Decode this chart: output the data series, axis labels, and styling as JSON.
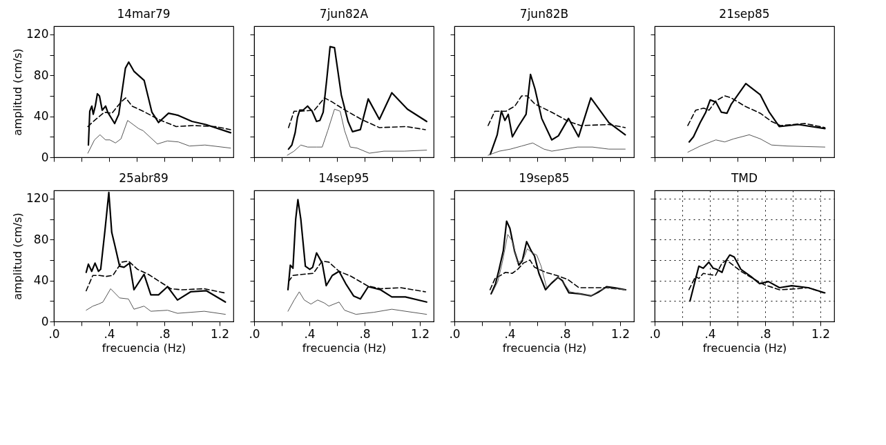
{
  "chart_data": [
    {
      "type": "line",
      "title": "14mar79",
      "ylabel": "amplitud (cm/s)",
      "xlim": [
        0,
        1.3
      ],
      "ylim": [
        0,
        128
      ],
      "xticks": [
        {
          "value": 0,
          "label": null
        },
        {
          "value": 0.2,
          "label": null
        },
        {
          "value": 0.4,
          "label": null
        },
        {
          "value": 0.6,
          "label": null
        },
        {
          "value": 0.8,
          "label": null
        },
        {
          "value": 1.0,
          "label": null
        },
        {
          "value": 1.2,
          "label": null
        }
      ],
      "yticks": [
        0,
        {
          "value": 20,
          "label": null
        },
        40,
        {
          "value": 60,
          "label": null
        },
        80,
        {
          "value": 100,
          "label": null
        },
        120
      ],
      "tick_labels": "y",
      "series": [
        {
          "color": "#000000",
          "x": [
            0.25,
            0.26,
            0.275,
            0.285,
            0.3,
            0.315,
            0.33,
            0.35,
            0.375,
            0.39,
            0.44,
            0.47,
            0.518,
            0.542,
            0.58,
            0.654,
            0.71,
            0.758,
            0.83,
            0.9,
            1.0,
            1.1,
            1.28
          ],
          "values": [
            12,
            45,
            50,
            42,
            50,
            62,
            60,
            46,
            50,
            44,
            33,
            42,
            87,
            93,
            84,
            75,
            44,
            34,
            43,
            41,
            35,
            32,
            24
          ]
        },
        {
          "color": "#000000",
          "line_style": "dashed",
          "x": [
            0.246,
            0.294,
            0.366,
            0.42,
            0.486,
            0.52,
            0.566,
            0.646,
            0.758,
            0.886,
            1.01,
            1.17,
            1.28
          ],
          "values": [
            30,
            36,
            44,
            43,
            54,
            58,
            50,
            45,
            37,
            30,
            31,
            30,
            27
          ]
        },
        {
          "color": "#555555",
          "x": [
            0.246,
            0.294,
            0.334,
            0.374,
            0.406,
            0.446,
            0.486,
            0.534,
            0.614,
            0.646,
            0.75,
            0.822,
            0.902,
            0.982,
            1.094,
            1.28
          ],
          "values": [
            4,
            17,
            22,
            17,
            17,
            14,
            18,
            36,
            28,
            26,
            13,
            16,
            15,
            11,
            12,
            9
          ]
        }
      ]
    },
    {
      "type": "line",
      "title": "7jun82A",
      "xlim": [
        0,
        1.3
      ],
      "ylim": [
        0,
        128
      ],
      "xticks": [
        {
          "value": 0,
          "label": null
        },
        {
          "value": 0.2,
          "label": null
        },
        {
          "value": 0.4,
          "label": null
        },
        {
          "value": 0.6,
          "label": null
        },
        {
          "value": 0.8,
          "label": null
        },
        {
          "value": 1.0,
          "label": null
        },
        {
          "value": 1.2,
          "label": null
        }
      ],
      "yticks": [
        {
          "value": 0,
          "label": null
        },
        {
          "value": 20,
          "label": null
        },
        {
          "value": 40,
          "label": null
        },
        {
          "value": 60,
          "label": null
        },
        {
          "value": 80,
          "label": null
        },
        {
          "value": 100,
          "label": null
        },
        {
          "value": 120,
          "label": null
        }
      ],
      "tick_labels": false,
      "series": [
        {
          "color": "#000000",
          "x": [
            0.249,
            0.273,
            0.297,
            0.314,
            0.33,
            0.354,
            0.387,
            0.42,
            0.452,
            0.476,
            0.5,
            0.525,
            0.55,
            0.582,
            0.631,
            0.68,
            0.712,
            0.769,
            0.826,
            0.907,
            0.997,
            1.11,
            1.249
          ],
          "values": [
            8,
            12,
            24,
            39,
            46,
            46,
            50,
            45,
            35,
            36,
            44,
            75,
            108,
            107,
            61,
            35,
            25,
            27,
            57,
            37,
            63,
            47,
            35
          ]
        },
        {
          "color": "#000000",
          "line_style": "dashed",
          "x": [
            0.249,
            0.289,
            0.338,
            0.436,
            0.509,
            0.566,
            0.647,
            0.777,
            0.907,
            1.1,
            1.24
          ],
          "values": [
            29,
            45,
            45,
            46,
            58,
            54,
            47,
            37,
            29,
            30,
            27
          ]
        },
        {
          "color": "#555555",
          "x": [
            0.24,
            0.289,
            0.338,
            0.387,
            0.452,
            0.493,
            0.533,
            0.582,
            0.623,
            0.655,
            0.696,
            0.745,
            0.834,
            0.94,
            1.086,
            1.249
          ],
          "values": [
            2,
            6,
            12,
            10,
            10,
            10,
            26,
            47,
            45,
            26,
            10,
            9,
            4,
            6,
            6,
            7
          ]
        }
      ]
    },
    {
      "type": "line",
      "title": "7jun82B",
      "xlim": [
        0,
        1.3
      ],
      "ylim": [
        0,
        128
      ],
      "xticks": [
        {
          "value": 0,
          "label": null
        },
        {
          "value": 0.2,
          "label": null
        },
        {
          "value": 0.4,
          "label": null
        },
        {
          "value": 0.6,
          "label": null
        },
        {
          "value": 0.8,
          "label": null
        },
        {
          "value": 1.0,
          "label": null
        },
        {
          "value": 1.2,
          "label": null
        }
      ],
      "yticks": [
        {
          "value": 0,
          "label": null
        },
        {
          "value": 20,
          "label": null
        },
        {
          "value": 40,
          "label": null
        },
        {
          "value": 60,
          "label": null
        },
        {
          "value": 80,
          "label": null
        },
        {
          "value": 100,
          "label": null
        },
        {
          "value": 120,
          "label": null
        }
      ],
      "tick_labels": false,
      "series": [
        {
          "color": "#000000",
          "x": [
            0.26,
            0.31,
            0.34,
            0.366,
            0.39,
            0.42,
            0.462,
            0.519,
            0.551,
            0.583,
            0.632,
            0.705,
            0.753,
            0.826,
            0.899,
            0.988,
            1.118,
            1.237
          ],
          "values": [
            3,
            22,
            45,
            36,
            42,
            20,
            30,
            42,
            81,
            67,
            38,
            17,
            21,
            38,
            20,
            58,
            34,
            22
          ]
        },
        {
          "color": "#000000",
          "line_style": "dashed",
          "x": [
            0.244,
            0.293,
            0.374,
            0.438,
            0.487,
            0.527,
            0.583,
            0.705,
            0.826,
            0.915,
            1.118,
            1.237
          ],
          "values": [
            31,
            45,
            45,
            50,
            60,
            60,
            52,
            44,
            35,
            31,
            32,
            29
          ]
        },
        {
          "color": "#555555",
          "x": [
            0.244,
            0.325,
            0.406,
            0.487,
            0.567,
            0.648,
            0.705,
            0.794,
            0.891,
            1.0,
            1.118,
            1.237
          ],
          "values": [
            2,
            6,
            8,
            11,
            14,
            8,
            6,
            8,
            10,
            10,
            8,
            8
          ]
        }
      ]
    },
    {
      "type": "line",
      "title": "21sep85",
      "xlim": [
        0,
        1.3
      ],
      "ylim": [
        0,
        128
      ],
      "xticks": [
        {
          "value": 0,
          "label": null
        },
        {
          "value": 0.2,
          "label": null
        },
        {
          "value": 0.4,
          "label": null
        },
        {
          "value": 0.6,
          "label": null
        },
        {
          "value": 0.8,
          "label": null
        },
        {
          "value": 1.0,
          "label": null
        },
        {
          "value": 1.2,
          "label": null
        }
      ],
      "yticks": [
        {
          "value": 0,
          "label": null
        },
        {
          "value": 20,
          "label": null
        },
        {
          "value": 40,
          "label": null
        },
        {
          "value": 60,
          "label": null
        },
        {
          "value": 80,
          "label": null
        },
        {
          "value": 100,
          "label": null
        },
        {
          "value": 120,
          "label": null
        }
      ],
      "tick_labels": false,
      "series": [
        {
          "color": "#000000",
          "x": [
            0.25,
            0.281,
            0.33,
            0.37,
            0.402,
            0.443,
            0.483,
            0.523,
            0.555,
            0.66,
            0.765,
            0.83,
            0.902,
            1.04,
            1.233
          ],
          "values": [
            15,
            20,
            34,
            44,
            56,
            54,
            44,
            43,
            52,
            72,
            61,
            44,
            30,
            32,
            28
          ]
        },
        {
          "color": "#000000",
          "line_style": "dashed",
          "x": [
            0.24,
            0.297,
            0.354,
            0.394,
            0.443,
            0.507,
            0.555,
            0.652,
            0.765,
            0.846,
            0.91,
            1.088,
            1.233
          ],
          "values": [
            31,
            46,
            48,
            46,
            55,
            60,
            58,
            50,
            43,
            35,
            31,
            33,
            29
          ]
        },
        {
          "color": "#555555",
          "x": [
            0.24,
            0.33,
            0.443,
            0.507,
            0.572,
            0.685,
            0.765,
            0.846,
            0.96,
            1.233
          ],
          "values": [
            5,
            11,
            17,
            15,
            18,
            22,
            18,
            12,
            11,
            10
          ]
        }
      ]
    },
    {
      "type": "line",
      "title": "25abr89",
      "xlabel": "frecuencia (Hz)",
      "ylabel": "amplitud (cm/s)",
      "xlim": [
        0,
        1.3
      ],
      "ylim": [
        0,
        128
      ],
      "xticks": [
        {
          "value": 0,
          "label": ".0"
        },
        {
          "value": 0.2,
          "label": null
        },
        {
          "value": 0.4,
          "label": ".4"
        },
        {
          "value": 0.6,
          "label": null
        },
        {
          "value": 0.8,
          "label": ".8"
        },
        {
          "value": 1.0,
          "label": null
        },
        {
          "value": 1.2,
          "label": "1.2"
        }
      ],
      "yticks": [
        0,
        {
          "value": 20,
          "label": null
        },
        40,
        {
          "value": 60,
          "label": null
        },
        80,
        {
          "value": 100,
          "label": null
        },
        120
      ],
      "series": [
        {
          "color": "#000000",
          "x": [
            0.234,
            0.25,
            0.274,
            0.298,
            0.323,
            0.339,
            0.37,
            0.398,
            0.419,
            0.444,
            0.476,
            0.508,
            0.548,
            0.58,
            0.653,
            0.702,
            0.758,
            0.823,
            0.895,
            0.99,
            1.105,
            1.242
          ],
          "values": [
            48,
            56,
            49,
            57,
            49,
            51,
            89,
            126,
            87,
            73,
            54,
            53,
            57,
            31,
            46,
            26,
            26,
            34,
            21,
            29,
            30,
            19
          ]
        },
        {
          "color": "#000000",
          "line_style": "dashed",
          "x": [
            0.234,
            0.282,
            0.331,
            0.379,
            0.427,
            0.492,
            0.54,
            0.605,
            0.685,
            0.766,
            0.847,
            0.927,
            1.089,
            1.234
          ],
          "values": [
            30,
            45,
            45,
            44,
            45,
            58,
            59,
            51,
            46,
            39,
            32,
            31,
            32,
            28
          ]
        },
        {
          "color": "#555555",
          "x": [
            0.234,
            0.282,
            0.323,
            0.355,
            0.411,
            0.476,
            0.54,
            0.58,
            0.653,
            0.702,
            0.823,
            0.895,
            1.089,
            1.242
          ],
          "values": [
            11,
            15,
            17,
            19,
            32,
            23,
            22,
            12,
            15,
            10,
            11,
            8,
            10,
            7
          ]
        }
      ]
    },
    {
      "type": "line",
      "title": "14sep95",
      "xlabel": "frecuencia (Hz)",
      "xlim": [
        0,
        1.3
      ],
      "ylim": [
        0,
        128
      ],
      "xticks": [
        {
          "value": 0,
          "label": ".0"
        },
        {
          "value": 0.2,
          "label": null
        },
        {
          "value": 0.4,
          "label": ".4"
        },
        {
          "value": 0.6,
          "label": null
        },
        {
          "value": 0.8,
          "label": ".8"
        },
        {
          "value": 1.0,
          "label": null
        },
        {
          "value": 1.2,
          "label": "1.2"
        }
      ],
      "yticks": [
        {
          "value": 0,
          "label": null
        },
        {
          "value": 20,
          "label": null
        },
        {
          "value": 40,
          "label": null
        },
        {
          "value": 60,
          "label": null
        },
        {
          "value": 80,
          "label": null
        },
        {
          "value": 100,
          "label": null
        },
        {
          "value": 120,
          "label": null
        }
      ],
      "tick_labels": "x",
      "series": [
        {
          "color": "#000000",
          "x": [
            0.245,
            0.262,
            0.281,
            0.301,
            0.317,
            0.338,
            0.371,
            0.403,
            0.424,
            0.452,
            0.493,
            0.522,
            0.566,
            0.615,
            0.663,
            0.72,
            0.769,
            0.826,
            0.915,
            0.997,
            1.095,
            1.249
          ],
          "values": [
            31,
            55,
            52,
            100,
            119,
            100,
            54,
            51,
            53,
            67,
            57,
            35,
            45,
            49,
            37,
            25,
            22,
            34,
            31,
            24,
            24,
            19
          ]
        },
        {
          "color": "#000000",
          "line_style": "dashed",
          "x": [
            0.249,
            0.281,
            0.346,
            0.428,
            0.493,
            0.541,
            0.615,
            0.704,
            0.818,
            0.915,
            1.062,
            1.241
          ],
          "values": [
            39,
            45,
            46,
            47,
            59,
            58,
            49,
            44,
            35,
            32,
            33,
            29
          ]
        },
        {
          "color": "#555555",
          "x": [
            0.245,
            0.29,
            0.327,
            0.363,
            0.411,
            0.46,
            0.509,
            0.541,
            0.615,
            0.655,
            0.737,
            0.867,
            0.997,
            1.095,
            1.249
          ],
          "values": [
            10,
            21,
            29,
            21,
            17,
            21,
            18,
            15,
            19,
            11,
            7,
            9,
            12,
            10,
            7
          ]
        }
      ]
    },
    {
      "type": "line",
      "title": "19sep85",
      "xlabel": "frecuencia (Hz)",
      "xlim": [
        0,
        1.3
      ],
      "ylim": [
        0,
        128
      ],
      "xticks": [
        {
          "value": 0,
          "label": ".0"
        },
        {
          "value": 0.2,
          "label": null
        },
        {
          "value": 0.4,
          "label": ".4"
        },
        {
          "value": 0.6,
          "label": null
        },
        {
          "value": 0.8,
          "label": ".8"
        },
        {
          "value": 1.0,
          "label": null
        },
        {
          "value": 1.2,
          "label": "1.2"
        }
      ],
      "yticks": [
        {
          "value": 0,
          "label": null
        },
        {
          "value": 20,
          "label": null
        },
        {
          "value": 40,
          "label": null
        },
        {
          "value": 60,
          "label": null
        },
        {
          "value": 80,
          "label": null
        },
        {
          "value": 100,
          "label": null
        },
        {
          "value": 120,
          "label": null
        }
      ],
      "tick_labels": "x",
      "series": [
        {
          "color": "#000000",
          "x": [
            0.266,
            0.298,
            0.322,
            0.354,
            0.378,
            0.402,
            0.435,
            0.467,
            0.491,
            0.523,
            0.556,
            0.58,
            0.612,
            0.66,
            0.7,
            0.749,
            0.781,
            0.829,
            0.91,
            0.99,
            1.047,
            1.103,
            1.159,
            1.24
          ],
          "values": [
            27,
            37,
            50,
            69,
            98,
            91,
            69,
            55,
            59,
            78,
            69,
            64,
            47,
            31,
            37,
            43,
            40,
            28,
            27,
            25,
            29,
            34,
            33,
            31
          ]
        },
        {
          "color": "#000000",
          "line_style": "dashed",
          "x": [
            0.258,
            0.298,
            0.322,
            0.37,
            0.418,
            0.459,
            0.499,
            0.547,
            0.58,
            0.66,
            0.741,
            0.821,
            0.902,
            0.99,
            1.094,
            1.24
          ],
          "values": [
            31,
            43,
            44,
            48,
            47,
            51,
            57,
            60,
            53,
            48,
            45,
            41,
            33,
            33,
            33,
            31
          ]
        },
        {
          "color": "#555555",
          "x": [
            0.274,
            0.314,
            0.346,
            0.386,
            0.418,
            0.459,
            0.499,
            0.528,
            0.563,
            0.596,
            0.628,
            0.668,
            0.708,
            0.749,
            0.789,
            0.837,
            0.918,
            0.99,
            1.047,
            1.103,
            1.24
          ],
          "values": [
            28,
            39,
            57,
            85,
            79,
            57,
            61,
            71,
            67,
            65,
            54,
            33,
            39,
            43,
            38,
            29,
            27,
            25,
            30,
            33,
            31
          ]
        }
      ]
    },
    {
      "type": "line",
      "title": "TMD",
      "xlabel": "frecuencia (Hz)",
      "xlim": [
        0,
        1.3
      ],
      "ylim": [
        0,
        128
      ],
      "xticks": [
        {
          "value": 0,
          "label": ".0"
        },
        {
          "value": 0.2,
          "label": null
        },
        {
          "value": 0.4,
          "label": ".4"
        },
        {
          "value": 0.6,
          "label": null
        },
        {
          "value": 0.8,
          "label": ".8"
        },
        {
          "value": 1.0,
          "label": null
        },
        {
          "value": 1.2,
          "label": "1.2"
        }
      ],
      "yticks": [
        {
          "value": 0,
          "label": null
        },
        {
          "value": 20,
          "label": null
        },
        {
          "value": 40,
          "label": null
        },
        {
          "value": 60,
          "label": null
        },
        {
          "value": 80,
          "label": null
        },
        {
          "value": 100,
          "label": null
        },
        {
          "value": 120,
          "label": null
        }
      ],
      "tick_labels": "x",
      "grid": true,
      "series": [
        {
          "color": "#000000",
          "x": [
            0.256,
            0.288,
            0.32,
            0.352,
            0.392,
            0.424,
            0.448,
            0.488,
            0.52,
            0.544,
            0.576,
            0.624,
            0.696,
            0.76,
            0.824,
            0.904,
            0.992,
            1.112,
            1.232
          ],
          "values": [
            20,
            37,
            54,
            52,
            58,
            52,
            51,
            48,
            60,
            65,
            63,
            51,
            44,
            37,
            39,
            33,
            35,
            33,
            28
          ]
        },
        {
          "color": "#000000",
          "line_style": "dashed",
          "x": [
            0.248,
            0.296,
            0.32,
            0.352,
            0.392,
            0.44,
            0.488,
            0.52,
            0.568,
            0.624,
            0.712,
            0.792,
            0.904,
            1.032,
            1.112,
            1.224
          ],
          "values": [
            31,
            44,
            42,
            47,
            46,
            45,
            57,
            60,
            55,
            49,
            42,
            36,
            31,
            32,
            33,
            28
          ]
        }
      ]
    }
  ]
}
